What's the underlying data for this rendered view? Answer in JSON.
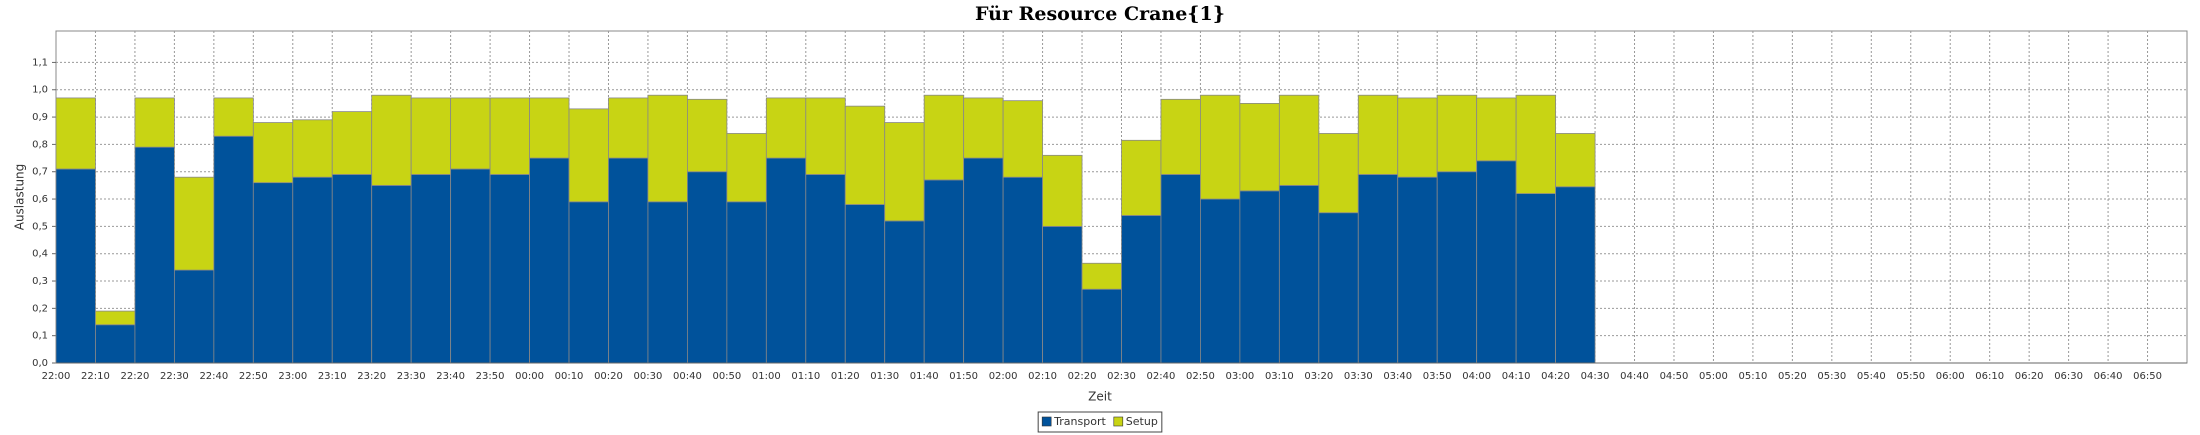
{
  "chart_data": {
    "type": "stacked_bar",
    "title": "Für Resource Crane{1}",
    "xlabel": "Zeit",
    "ylabel": "Auslastung",
    "categories": [
      "22:00",
      "22:10",
      "22:20",
      "22:30",
      "22:40",
      "22:50",
      "23:00",
      "23:10",
      "23:20",
      "23:30",
      "23:40",
      "23:50",
      "00:00",
      "00:10",
      "00:20",
      "00:30",
      "00:40",
      "00:50",
      "01:00",
      "01:10",
      "01:20",
      "01:30",
      "01:40",
      "01:50",
      "02:00",
      "02:10",
      "02:20",
      "02:30",
      "02:40",
      "02:50",
      "03:00",
      "03:10",
      "03:20",
      "03:30",
      "03:40",
      "03:50",
      "04:00",
      "04:10",
      "04:20",
      "04:30",
      "04:40",
      "04:50",
      "05:00",
      "05:10",
      "05:20",
      "05:30",
      "05:40",
      "05:50",
      "06:00",
      "06:10",
      "06:20",
      "06:30",
      "06:40",
      "06:50"
    ],
    "series": [
      {
        "name": "Transport",
        "color": "#00529b",
        "values": [
          0.71,
          0.14,
          0.79,
          0.34,
          0.83,
          0.66,
          0.68,
          0.69,
          0.65,
          0.69,
          0.71,
          0.69,
          0.75,
          0.59,
          0.75,
          0.59,
          0.7,
          0.59,
          0.75,
          0.69,
          0.58,
          0.52,
          0.67,
          0.75,
          0.68,
          0.5,
          0.27,
          0.54,
          0.69,
          0.6,
          0.63,
          0.65,
          0.55,
          0.69,
          0.68,
          0.7,
          0.74,
          0.62,
          0.645,
          null,
          null,
          null,
          null,
          null,
          null,
          null,
          null,
          null,
          null,
          null,
          null,
          null,
          null,
          null
        ]
      },
      {
        "name": "Setup",
        "color": "#c8d414",
        "values": [
          0.26,
          0.05,
          0.18,
          0.34,
          0.14,
          0.22,
          0.21,
          0.23,
          0.33,
          0.28,
          0.26,
          0.28,
          0.22,
          0.34,
          0.22,
          0.39,
          0.265,
          0.25,
          0.22,
          0.28,
          0.36,
          0.36,
          0.31,
          0.22,
          0.28,
          0.26,
          0.095,
          0.275,
          0.275,
          0.38,
          0.32,
          0.33,
          0.29,
          0.29,
          0.29,
          0.28,
          0.23,
          0.36,
          0.195,
          null,
          null,
          null,
          null,
          null,
          null,
          null,
          null,
          null,
          null,
          null,
          null,
          null,
          null,
          null
        ]
      }
    ],
    "ylim": [
      0,
      1.215
    ],
    "yticks": [
      {
        "value": 0,
        "label": "0,0"
      },
      {
        "value": 0.1,
        "label": "0,1"
      },
      {
        "value": 0.2,
        "label": "0,2"
      },
      {
        "value": 0.3,
        "label": "0,3"
      },
      {
        "value": 0.4,
        "label": "0,4"
      },
      {
        "value": 0.5,
        "label": "0,5"
      },
      {
        "value": 0.6,
        "label": "0,6"
      },
      {
        "value": 0.7,
        "label": "0,7"
      },
      {
        "value": 0.8,
        "label": "0,8"
      },
      {
        "value": 0.9,
        "label": "0,9"
      },
      {
        "value": 1.0,
        "label": "1,0"
      },
      {
        "value": 1.1,
        "label": "1,1"
      }
    ],
    "grid": true,
    "legend": "bottom"
  }
}
